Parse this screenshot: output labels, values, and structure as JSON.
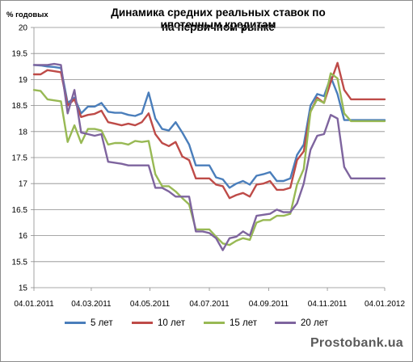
{
  "chart_data": {
    "type": "line",
    "title_line1": "Динамика средних реальных ставок по ипотечным кредитам",
    "title_line2": "на первичном рынке",
    "ylabel": "% годовых",
    "ylim": [
      15,
      20
    ],
    "yticks": [
      "15",
      "15.5",
      "16",
      "16.5",
      "17",
      "17.5",
      "18",
      "18.5",
      "19",
      "19.5",
      "20"
    ],
    "xlim": [
      0,
      52
    ],
    "xticks": [
      {
        "label": "04.01.2011",
        "x": 0
      },
      {
        "label": "04.03.2011",
        "x": 8.5
      },
      {
        "label": "04.05.2011",
        "x": 17.2
      },
      {
        "label": "04.07.2011",
        "x": 26
      },
      {
        "label": "04.09.2011",
        "x": 34.8
      },
      {
        "label": "04.11.2011",
        "x": 43.5
      },
      {
        "label": "04.01.2012",
        "x": 52
      }
    ],
    "grid": "horizontal",
    "series": [
      {
        "name": "5 лет",
        "color": "#4a7ebb",
        "x": [
          0,
          1,
          2,
          3,
          4,
          5,
          6,
          7,
          8,
          9,
          10,
          11,
          12,
          13,
          14,
          15,
          16,
          17,
          18,
          19,
          20,
          21,
          22,
          23,
          24,
          25,
          26,
          27,
          28,
          29,
          30,
          31,
          32,
          33,
          34,
          35,
          36,
          37,
          38,
          39,
          40,
          41,
          42,
          43,
          44,
          45,
          46,
          47,
          48,
          49,
          50,
          51,
          52
        ],
        "values": [
          19.28,
          19.27,
          19.25,
          19.24,
          19.22,
          18.55,
          18.65,
          18.35,
          18.48,
          18.48,
          18.55,
          18.38,
          18.36,
          18.36,
          18.32,
          18.3,
          18.35,
          18.75,
          18.25,
          18.05,
          18.02,
          18.18,
          17.98,
          17.75,
          17.35,
          17.35,
          17.35,
          17.12,
          17.08,
          16.92,
          17.0,
          17.05,
          16.98,
          17.15,
          17.18,
          17.22,
          17.05,
          17.05,
          17.1,
          17.55,
          17.75,
          18.5,
          18.72,
          18.68,
          19.05,
          18.72,
          18.22,
          18.22,
          18.22,
          18.22,
          18.22,
          18.22,
          18.22
        ]
      },
      {
        "name": "10 лет",
        "color": "#be4b48",
        "x": [
          0,
          1,
          2,
          3,
          4,
          5,
          6,
          7,
          8,
          9,
          10,
          11,
          12,
          13,
          14,
          15,
          16,
          17,
          18,
          19,
          20,
          21,
          22,
          23,
          24,
          25,
          26,
          27,
          28,
          29,
          30,
          31,
          32,
          33,
          34,
          35,
          36,
          37,
          38,
          39,
          40,
          41,
          42,
          43,
          44,
          45,
          46,
          47,
          48,
          49,
          50,
          51,
          52
        ],
        "values": [
          19.1,
          19.1,
          19.18,
          19.16,
          19.14,
          18.5,
          18.62,
          18.28,
          18.32,
          18.34,
          18.4,
          18.18,
          18.15,
          18.12,
          18.15,
          18.12,
          18.18,
          18.35,
          17.95,
          17.78,
          17.72,
          17.8,
          17.52,
          17.45,
          17.1,
          17.1,
          17.1,
          16.98,
          16.95,
          16.72,
          16.78,
          16.82,
          16.75,
          16.98,
          17.0,
          17.05,
          16.88,
          16.88,
          16.92,
          17.45,
          17.62,
          18.38,
          18.65,
          18.55,
          18.95,
          19.32,
          18.8,
          18.62,
          18.62,
          18.62,
          18.62,
          18.62,
          18.62
        ]
      },
      {
        "name": "15 лет",
        "color": "#98b954",
        "x": [
          0,
          1,
          2,
          3,
          4,
          5,
          6,
          7,
          8,
          9,
          10,
          11,
          12,
          13,
          14,
          15,
          16,
          17,
          18,
          19,
          20,
          21,
          22,
          23,
          24,
          25,
          26,
          27,
          28,
          29,
          30,
          31,
          32,
          33,
          34,
          35,
          36,
          37,
          38,
          39,
          40,
          41,
          42,
          43,
          44,
          45,
          46,
          47,
          48,
          49,
          50,
          51,
          52
        ],
        "values": [
          18.8,
          18.78,
          18.62,
          18.6,
          18.58,
          17.8,
          18.12,
          17.78,
          18.05,
          18.05,
          18.02,
          17.75,
          17.78,
          17.78,
          17.75,
          17.82,
          17.8,
          17.82,
          17.18,
          16.95,
          16.95,
          16.85,
          16.72,
          16.6,
          16.12,
          16.12,
          16.12,
          15.98,
          15.85,
          15.82,
          15.9,
          15.95,
          15.92,
          16.25,
          16.3,
          16.3,
          16.38,
          16.38,
          16.42,
          16.98,
          17.28,
          18.38,
          18.62,
          18.55,
          19.12,
          19.02,
          18.35,
          18.2,
          18.2,
          18.2,
          18.2,
          18.2,
          18.2
        ]
      },
      {
        "name": "20 лет",
        "color": "#7e649e",
        "x": [
          0,
          1,
          2,
          3,
          4,
          5,
          6,
          7,
          8,
          9,
          10,
          11,
          12,
          13,
          14,
          15,
          16,
          17,
          18,
          19,
          20,
          21,
          22,
          23,
          24,
          25,
          26,
          27,
          28,
          29,
          30,
          31,
          32,
          33,
          34,
          35,
          36,
          37,
          38,
          39,
          40,
          41,
          42,
          43,
          44,
          45,
          46,
          47,
          48,
          49,
          50,
          51,
          52
        ],
        "values": [
          19.28,
          19.28,
          19.28,
          19.3,
          19.28,
          18.35,
          18.8,
          17.98,
          17.95,
          17.92,
          17.95,
          17.42,
          17.4,
          17.38,
          17.35,
          17.35,
          17.35,
          17.35,
          16.92,
          16.92,
          16.85,
          16.75,
          16.75,
          16.75,
          16.08,
          16.08,
          16.05,
          15.95,
          15.72,
          15.95,
          15.98,
          16.08,
          16.0,
          16.38,
          16.4,
          16.42,
          16.5,
          16.45,
          16.45,
          16.62,
          17.0,
          17.65,
          17.92,
          17.95,
          18.32,
          18.25,
          17.32,
          17.1,
          17.1,
          17.1,
          17.1,
          17.1,
          17.1
        ]
      }
    ]
  },
  "watermark": "Prostobank.ua"
}
